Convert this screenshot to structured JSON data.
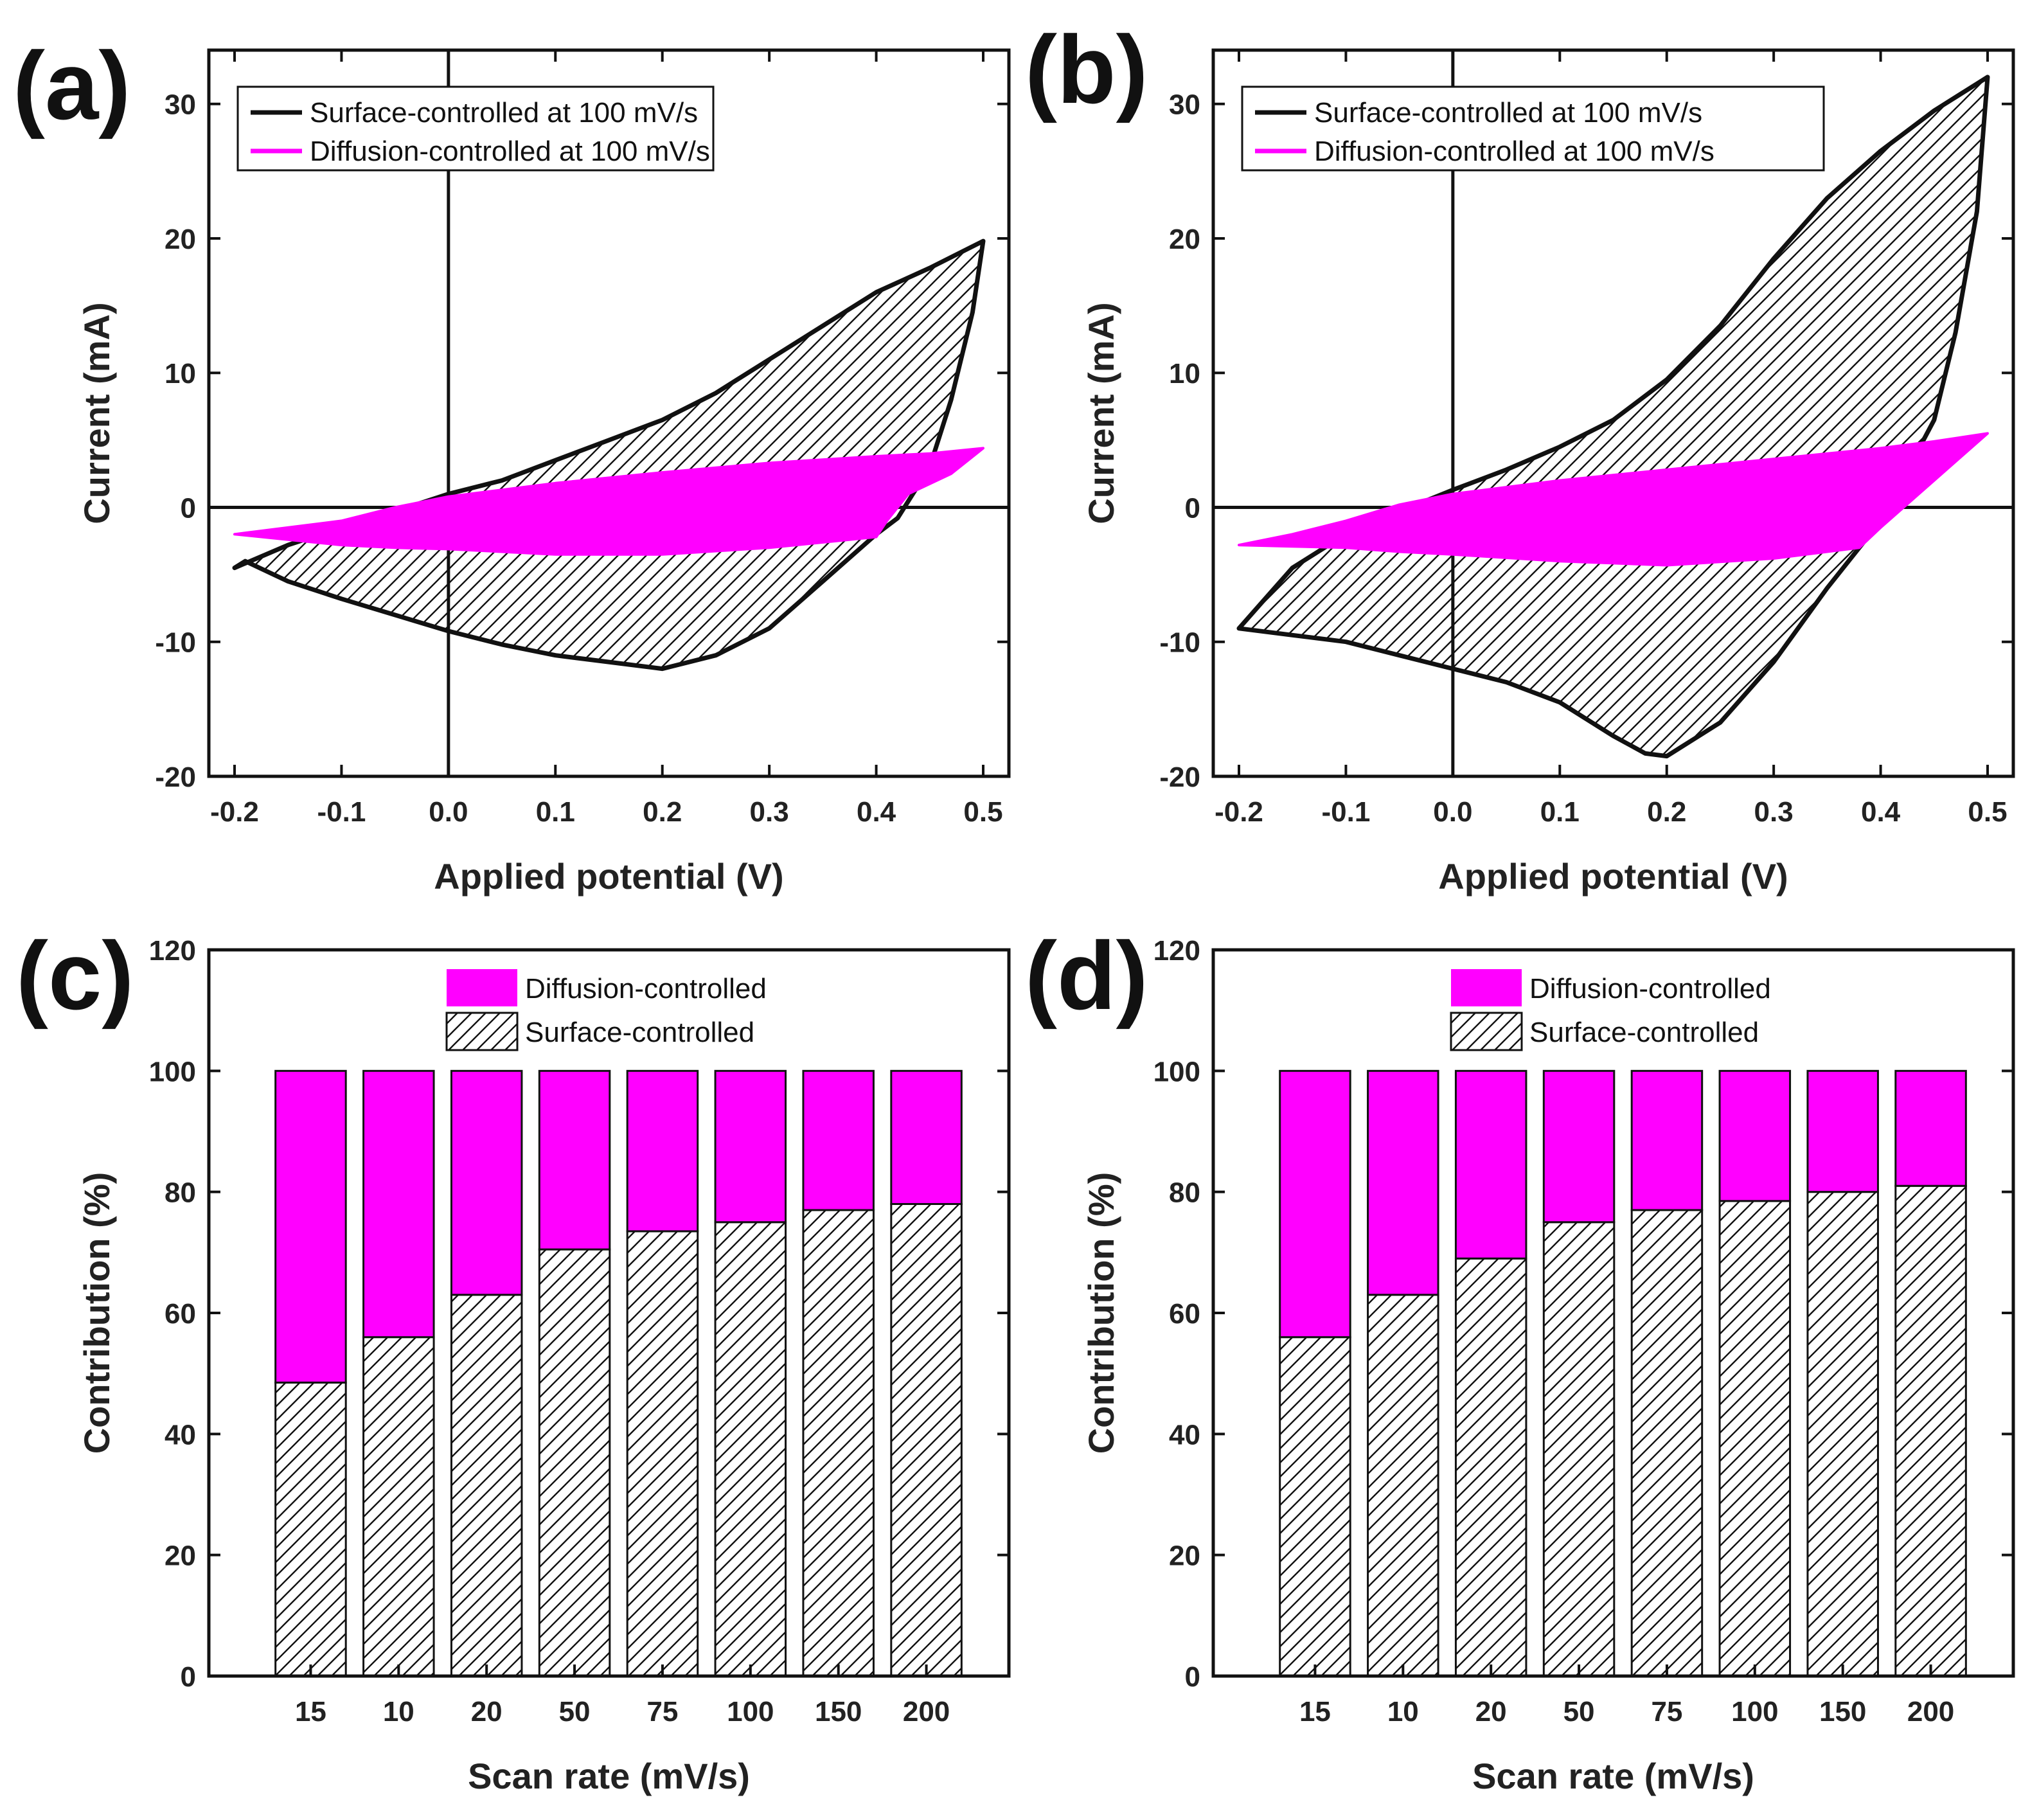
{
  "colors": {
    "surface": "#111111",
    "diffusion": "#ff00ff",
    "axis": "#111111",
    "background": "#ffffff"
  },
  "chart_data": [
    {
      "panel": "(a)",
      "type": "line",
      "xlabel": "Applied potential (V)",
      "ylabel": "Current (mA)",
      "xlim": [
        -0.2,
        0.5
      ],
      "ylim": [
        -20,
        34
      ],
      "xticks": [
        -0.2,
        -0.1,
        0.0,
        0.1,
        0.2,
        0.3,
        0.4,
        0.5
      ],
      "xtick_labels": [
        "-0.2",
        "-0.1",
        "0.0",
        "0.1",
        "0.2",
        "0.3",
        "0.4",
        "0.5"
      ],
      "yticks": [
        -20,
        -10,
        0,
        10,
        20,
        30
      ],
      "ytick_labels": [
        "-20",
        "-10",
        "0",
        "10",
        "20",
        "30"
      ],
      "zero_lines": true,
      "legend_position": "top-left",
      "legend": [
        "Surface-controlled at 100 mV/s",
        "Diffusion-controlled at 100 mV/s"
      ],
      "series": [
        {
          "name": "Surface-controlled at 100 mV/s",
          "fill": "hatched",
          "x": [
            -0.2,
            -0.15,
            -0.1,
            -0.05,
            0.0,
            0.05,
            0.1,
            0.15,
            0.2,
            0.25,
            0.3,
            0.35,
            0.4,
            0.45,
            0.5,
            0.49,
            0.47,
            0.45,
            0.42,
            0.4,
            0.35,
            0.3,
            0.25,
            0.2,
            0.15,
            0.1,
            0.05,
            0.0,
            -0.05,
            -0.1,
            -0.15,
            -0.19,
            -0.2
          ],
          "y": [
            -4.5,
            -2.8,
            -1.5,
            -0.3,
            1.0,
            2.0,
            3.5,
            5.0,
            6.5,
            8.5,
            11.0,
            13.5,
            16.0,
            17.8,
            19.8,
            14.5,
            8.0,
            3.0,
            -0.8,
            -2.0,
            -5.5,
            -9.0,
            -11.0,
            -12.0,
            -11.5,
            -11.0,
            -10.2,
            -9.2,
            -8.0,
            -6.8,
            -5.5,
            -4.0,
            -4.5
          ]
        },
        {
          "name": "Diffusion-controlled at 100 mV/s",
          "fill": "solid",
          "x": [
            -0.2,
            -0.15,
            -0.1,
            -0.05,
            0.0,
            0.1,
            0.2,
            0.3,
            0.4,
            0.45,
            0.5,
            0.47,
            0.43,
            0.41,
            0.4,
            0.3,
            0.2,
            0.1,
            0.0,
            -0.05,
            -0.1,
            -0.15,
            -0.2
          ],
          "y": [
            -2.0,
            -1.5,
            -1.0,
            0.0,
            0.8,
            1.8,
            2.6,
            3.3,
            3.8,
            4.0,
            4.4,
            2.5,
            1.0,
            -1.0,
            -2.2,
            -3.0,
            -3.5,
            -3.5,
            -3.1,
            -3.0,
            -2.8,
            -2.4,
            -2.0
          ]
        }
      ]
    },
    {
      "panel": "(b)",
      "type": "line",
      "xlabel": "Applied potential (V)",
      "ylabel": "Current (mA)",
      "xlim": [
        -0.2,
        0.5
      ],
      "ylim": [
        -20,
        34
      ],
      "xticks": [
        -0.2,
        -0.1,
        0.0,
        0.1,
        0.2,
        0.3,
        0.4,
        0.5
      ],
      "xtick_labels": [
        "-0.2",
        "-0.1",
        "0.0",
        "0.1",
        "0.2",
        "0.3",
        "0.4",
        "0.5"
      ],
      "yticks": [
        -20,
        -10,
        0,
        10,
        20,
        30
      ],
      "ytick_labels": [
        "-20",
        "-10",
        "0",
        "10",
        "20",
        "30"
      ],
      "zero_lines": true,
      "legend_position": "top-left",
      "legend": [
        "Surface-controlled at 100 mV/s",
        "Diffusion-controlled at 100 mV/s"
      ],
      "series": [
        {
          "name": "Surface-controlled at 100 mV/s",
          "fill": "hatched",
          "x": [
            -0.2,
            -0.15,
            -0.1,
            -0.05,
            0.0,
            0.05,
            0.1,
            0.15,
            0.2,
            0.25,
            0.3,
            0.35,
            0.4,
            0.45,
            0.5,
            0.49,
            0.47,
            0.45,
            0.42,
            0.4,
            0.35,
            0.3,
            0.25,
            0.2,
            0.18,
            0.15,
            0.1,
            0.05,
            0.0,
            -0.05,
            -0.1,
            -0.15,
            -0.2
          ],
          "y": [
            -9.0,
            -4.5,
            -2.0,
            -0.3,
            1.3,
            2.8,
            4.5,
            6.5,
            9.5,
            13.5,
            18.5,
            23.0,
            26.5,
            29.5,
            32.0,
            22.0,
            13.0,
            6.5,
            2.0,
            -1.0,
            -6.0,
            -11.5,
            -16.0,
            -18.5,
            -18.3,
            -17.0,
            -14.5,
            -13.0,
            -12.0,
            -11.0,
            -10.0,
            -9.5,
            -9.0
          ]
        },
        {
          "name": "Diffusion-controlled at 100 mV/s",
          "fill": "solid",
          "x": [
            -0.2,
            -0.15,
            -0.1,
            -0.05,
            0.0,
            0.1,
            0.2,
            0.3,
            0.4,
            0.45,
            0.5,
            0.45,
            0.4,
            0.38,
            0.3,
            0.2,
            0.1,
            0.0,
            -0.05,
            -0.1,
            -0.15,
            -0.2
          ],
          "y": [
            -2.8,
            -2.0,
            -1.0,
            0.2,
            1.0,
            2.0,
            2.8,
            3.6,
            4.4,
            4.9,
            5.5,
            2.0,
            -1.5,
            -3.0,
            -3.8,
            -4.3,
            -4.0,
            -3.5,
            -3.3,
            -3.0,
            -2.9,
            -2.8
          ]
        }
      ]
    },
    {
      "panel": "(c)",
      "type": "bar",
      "stacked": true,
      "xlabel": "Scan rate (mV/s)",
      "ylabel": "Contribution (%)",
      "ylim": [
        0,
        120
      ],
      "yticks": [
        0,
        20,
        40,
        60,
        80,
        100,
        120
      ],
      "ytick_labels": [
        "0",
        "20",
        "40",
        "60",
        "80",
        "100",
        "120"
      ],
      "categories": [
        "15",
        "10",
        "20",
        "50",
        "75",
        "100",
        "150",
        "200"
      ],
      "legend_position": "top-center",
      "legend": [
        "Diffusion-controlled",
        "Surface-controlled"
      ],
      "series": [
        {
          "name": "Surface-controlled",
          "fill": "hatched",
          "values": [
            48.5,
            56.0,
            63.0,
            70.5,
            73.5,
            75.0,
            77.0,
            78.0
          ]
        },
        {
          "name": "Diffusion-controlled",
          "fill": "solid",
          "values": [
            51.5,
            44.0,
            37.0,
            29.5,
            26.5,
            25.0,
            23.0,
            22.0
          ]
        }
      ]
    },
    {
      "panel": "(d)",
      "type": "bar",
      "stacked": true,
      "xlabel": "Scan rate (mV/s)",
      "ylabel": "Contribution (%)",
      "ylim": [
        0,
        120
      ],
      "yticks": [
        0,
        20,
        40,
        60,
        80,
        100,
        120
      ],
      "ytick_labels": [
        "0",
        "20",
        "40",
        "60",
        "80",
        "100",
        "120"
      ],
      "categories": [
        "15",
        "10",
        "20",
        "50",
        "75",
        "100",
        "150",
        "200"
      ],
      "legend_position": "top-center",
      "legend": [
        "Diffusion-controlled",
        "Surface-controlled"
      ],
      "series": [
        {
          "name": "Surface-controlled",
          "fill": "hatched",
          "values": [
            56.0,
            63.0,
            69.0,
            75.0,
            77.0,
            78.5,
            80.0,
            81.0
          ]
        },
        {
          "name": "Diffusion-controlled",
          "fill": "solid",
          "values": [
            44.0,
            37.0,
            31.0,
            25.0,
            23.0,
            21.5,
            20.0,
            19.0
          ]
        }
      ]
    }
  ]
}
